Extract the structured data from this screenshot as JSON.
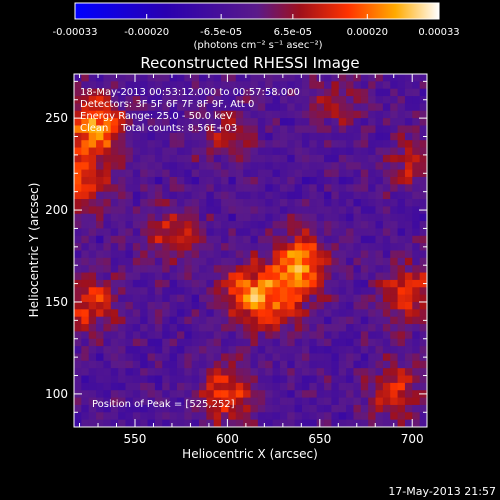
{
  "chart_data": {
    "type": "heatmap",
    "title": "Reconstructed RHESSI Image",
    "xlabel": "Heliocentric X (arcsec)",
    "ylabel": "Heliocentric Y (arcsec)",
    "xlim": [
      517,
      708
    ],
    "ylim": [
      82,
      274
    ],
    "x_ticks": [
      "550",
      "600",
      "650",
      "700"
    ],
    "y_ticks": [
      "100",
      "150",
      "200",
      "250"
    ],
    "x_tick_values": [
      550,
      600,
      650,
      700
    ],
    "y_tick_values": [
      100,
      150,
      200,
      250
    ],
    "colorbar": {
      "min": -0.00033,
      "max": 0.00033,
      "tick_labels": [
        "-0.00033",
        "-0.00020",
        "-6.5e-05",
        "6.5e-05",
        "0.00020",
        "0.00033"
      ],
      "tick_values": [
        -0.00033,
        -0.0002,
        -6.5e-05,
        6.5e-05,
        0.0002,
        0.00033
      ],
      "units": "(photons cm⁻² s⁻¹ asec⁻²)"
    },
    "annotations": [
      "18-May-2013 00:53:12.000 to 00:57:58.000",
      "Detectors: 3F 5F 6F 7F 8F 9F, Att 0",
      "Energy Range: 25.0 - 50.0 keV",
      "Clean    Total counts: 8.56E+03",
      "Position of Peak = [525,252]"
    ],
    "peak_position": [
      525,
      252
    ],
    "sources": [
      {
        "x": 640,
        "y": 172,
        "intensity": 0.000255
      },
      {
        "x": 610,
        "y": 155,
        "intensity": 0.00021
      },
      {
        "x": 628,
        "y": 150,
        "intensity": 0.00018
      },
      {
        "x": 600,
        "y": 100,
        "intensity": 0.0002
      },
      {
        "x": 528,
        "y": 245,
        "intensity": 0.00028
      },
      {
        "x": 520,
        "y": 215,
        "intensity": 0.00022
      },
      {
        "x": 525,
        "y": 150,
        "intensity": 0.00018
      },
      {
        "x": 570,
        "y": 188,
        "intensity": 0.00015
      },
      {
        "x": 698,
        "y": 155,
        "intensity": 0.00019
      },
      {
        "x": 690,
        "y": 100,
        "intensity": 0.00017
      },
      {
        "x": 700,
        "y": 225,
        "intensity": 0.00013
      },
      {
        "x": 660,
        "y": 260,
        "intensity": 0.00011
      },
      {
        "x": 600,
        "y": 240,
        "intensity": 0.0001
      }
    ]
  },
  "footer_timestamp": "17-May-2013 21:57"
}
